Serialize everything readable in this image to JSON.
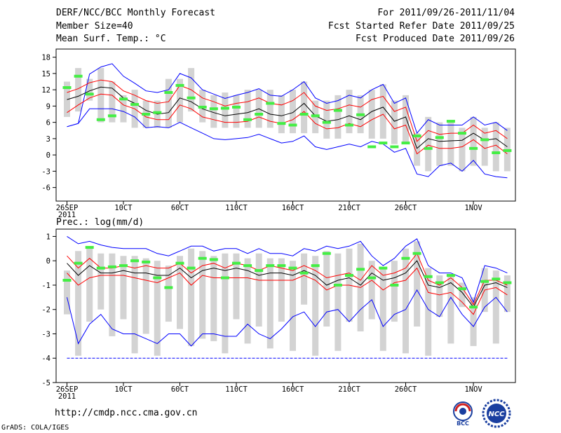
{
  "header": {
    "title": "DERF/NCC/BCC Monthly Forecast",
    "member_size": "Member Size=40",
    "variable": "Mean Surf. Temp.: °C",
    "period": "For 2011/09/26-2011/11/04",
    "fcst_started": "Fcst Started Refer Date 2011/09/25",
    "fcst_produced": "Fcst Produced Date 2011/09/26"
  },
  "footer": {
    "url": "http://cmdp.ncc.cma.gov.cn",
    "grads": "GrADS: COLA/IGES",
    "logo_bcc": "BCC",
    "logo_ncc": "NCC"
  },
  "colors": {
    "max_min": "#0000ff",
    "quartile": "#ff0000",
    "mean": "#000000",
    "bar": "#d3d3d3",
    "observed": "#44ee44"
  },
  "chart_data": [
    {
      "type": "line",
      "title": "Mean Surf. Temp.: °C",
      "x_tick_labels": [
        "26SEP",
        "10CT",
        "60CT",
        "110CT",
        "160CT",
        "210CT",
        "260CT",
        "1NOV"
      ],
      "x_tick_days": [
        0,
        5,
        10,
        15,
        20,
        25,
        30,
        36
      ],
      "x_sublabel": "2011",
      "y_ticks": [
        -6,
        -3,
        0,
        3,
        6,
        9,
        12,
        15,
        18
      ],
      "ylim": [
        -8.5,
        19.5
      ],
      "n_days": 40,
      "max": [
        5.2,
        5.8,
        14.9,
        16.2,
        16.8,
        14.5,
        13.2,
        11.8,
        11.5,
        12,
        15,
        14.2,
        12,
        11.2,
        10.4,
        11,
        11.5,
        12.2,
        11,
        10.8,
        12,
        13.5,
        10.5,
        9.5,
        10,
        11,
        10.5,
        12,
        13,
        9.5,
        10.5,
        4,
        6.5,
        5.5,
        5.5,
        5.5,
        7,
        5.5,
        6,
        4.5
      ],
      "q3": [
        11.5,
        12.2,
        13.3,
        13.8,
        13.5,
        11.8,
        11,
        10,
        9.5,
        9.8,
        12.8,
        12,
        10.5,
        9.8,
        9,
        9.5,
        9.8,
        10.5,
        9.5,
        9.2,
        10,
        11.5,
        9,
        8.2,
        8.5,
        9.2,
        8.8,
        10.2,
        10.8,
        8,
        8.8,
        2.5,
        4.5,
        3.8,
        4,
        4,
        5.5,
        4,
        4.5,
        3
      ],
      "mean": [
        10.2,
        10.8,
        11.8,
        12.5,
        12.3,
        10.5,
        9.5,
        8.2,
        7.5,
        7.8,
        10.5,
        9.8,
        8.5,
        7.8,
        7.2,
        7.5,
        7.8,
        8.5,
        7.5,
        7.2,
        7.8,
        9.5,
        7.2,
        6.2,
        6.5,
        7.2,
        6.5,
        8,
        8.8,
        6.2,
        7,
        1.2,
        3,
        2.5,
        2.6,
        2.7,
        4,
        2.7,
        3,
        1.5
      ],
      "q1": [
        7.8,
        9.2,
        10.5,
        11.2,
        11,
        9.2,
        8.5,
        7,
        6.5,
        6.5,
        9.2,
        8.5,
        7,
        6.5,
        6,
        6,
        6.2,
        7,
        6.2,
        5.8,
        6.5,
        8,
        5.8,
        4.8,
        5,
        5.8,
        5.2,
        6.5,
        7.5,
        4.8,
        5.5,
        0.2,
        1.8,
        1.2,
        1.2,
        1.5,
        2.8,
        1.2,
        1.8,
        0.2
      ],
      "min": [
        5.2,
        5.8,
        8.5,
        8.5,
        8.5,
        8,
        7,
        5,
        5.2,
        5,
        6,
        5,
        4,
        3,
        2.8,
        3,
        3.2,
        3.8,
        3,
        2.2,
        2.5,
        3.5,
        1.5,
        1,
        1.5,
        2,
        1.5,
        2.5,
        2,
        0.5,
        1.2,
        -3.5,
        -4,
        -2,
        -1.5,
        -3,
        -1,
        -3.5,
        -4,
        -4.2
      ],
      "bar_top": [
        13.5,
        16,
        14,
        16,
        13.5,
        11,
        12,
        10,
        10,
        14,
        14,
        16,
        12,
        11,
        11.5,
        11,
        12,
        12,
        12,
        11,
        12,
        13.5,
        10,
        10,
        11,
        12,
        11,
        12,
        13,
        10,
        11,
        4,
        7,
        6,
        6,
        5,
        7,
        5,
        6,
        5
      ],
      "bar_bottom": [
        7,
        8,
        10,
        6,
        6,
        6,
        5,
        5,
        5,
        5,
        6,
        8,
        6,
        5,
        5,
        5,
        5,
        5,
        5,
        4,
        4,
        4,
        4,
        3,
        3,
        4,
        4,
        3,
        3,
        2,
        2,
        -2,
        -3,
        -2,
        -2,
        -3,
        -2,
        -2,
        -3,
        -3
      ],
      "observed": [
        12.4,
        14.5,
        11.2,
        6.5,
        7.2,
        10.3,
        9.3,
        7.5,
        7.8,
        11.5,
        12.8,
        10.5,
        8.8,
        8.5,
        8.6,
        8.8,
        6.5,
        7.5,
        9.5,
        5.8,
        5.5,
        7.5,
        7.2,
        6,
        8.2,
        5.5,
        7.4,
        1.5,
        2.2,
        1.5,
        2.2,
        3.5,
        1.2,
        3.2,
        6.2,
        4,
        1.2,
        2.8,
        0.4,
        0.8
      ]
    },
    {
      "type": "line",
      "title": "Prec.: log(mm/d)",
      "x_tick_labels": [
        "26SEP",
        "10CT",
        "60CT",
        "110CT",
        "160CT",
        "210CT",
        "260CT",
        "1NOV"
      ],
      "x_tick_days": [
        0,
        5,
        10,
        15,
        20,
        25,
        30,
        36
      ],
      "x_sublabel": "2011",
      "y_ticks": [
        -5,
        -4,
        -3,
        -2,
        -1,
        0,
        1
      ],
      "ylim": [
        -5,
        1.3
      ],
      "n_days": 40,
      "baseline": -4,
      "max": [
        1,
        0.7,
        0.8,
        0.65,
        0.55,
        0.5,
        0.5,
        0.5,
        0.3,
        0.2,
        0.4,
        0.6,
        0.6,
        0.4,
        0.5,
        0.5,
        0.3,
        0.5,
        0.3,
        0.3,
        0.2,
        0.5,
        0.4,
        0.6,
        0.5,
        0.6,
        0.8,
        0.2,
        -0.2,
        0.1,
        0.6,
        0.9,
        -0.2,
        -0.5,
        -0.5,
        -0.7,
        -1.7,
        -0.2,
        -0.3,
        -0.5
      ],
      "q3": [
        0.2,
        -0.3,
        0.1,
        -0.3,
        -0.3,
        -0.2,
        -0.3,
        -0.2,
        -0.3,
        -0.3,
        -0.1,
        -0.5,
        -0.2,
        -0.1,
        -0.3,
        -0.1,
        -0.2,
        -0.4,
        -0.2,
        -0.3,
        -0.4,
        -0.2,
        -0.4,
        -0.7,
        -0.6,
        -0.5,
        -0.8,
        -0.2,
        -0.6,
        -0.5,
        -0.3,
        0.3,
        -0.8,
        -1,
        -0.7,
        -1.1,
        -1.8,
        -0.8,
        -0.8,
        -1
      ],
      "mean": [
        -0.1,
        -0.6,
        -0.2,
        -0.5,
        -0.5,
        -0.4,
        -0.5,
        -0.5,
        -0.6,
        -0.6,
        -0.3,
        -0.7,
        -0.4,
        -0.3,
        -0.4,
        -0.3,
        -0.4,
        -0.6,
        -0.5,
        -0.5,
        -0.6,
        -0.4,
        -0.6,
        -1,
        -0.8,
        -0.7,
        -1,
        -0.5,
        -0.8,
        -0.7,
        -0.5,
        0,
        -1,
        -1.1,
        -0.9,
        -1.3,
        -1.9,
        -1,
        -0.9,
        -1.1
      ],
      "q1": [
        -0.5,
        -1,
        -0.7,
        -0.6,
        -0.6,
        -0.6,
        -0.7,
        -0.8,
        -0.9,
        -0.7,
        -0.5,
        -1,
        -0.6,
        -0.7,
        -0.7,
        -0.7,
        -0.7,
        -0.8,
        -0.8,
        -0.8,
        -0.8,
        -0.6,
        -0.8,
        -1.2,
        -1,
        -1,
        -1.1,
        -0.8,
        -1.2,
        -0.9,
        -0.8,
        -0.3,
        -1.3,
        -1.4,
        -1.3,
        -1.7,
        -2.2,
        -1.2,
        -1.1,
        -1.4
      ],
      "min": [
        -1.5,
        -3.4,
        -2.6,
        -2.2,
        -2.8,
        -3,
        -3,
        -3.2,
        -3.4,
        -3,
        -3,
        -3.5,
        -3,
        -3,
        -3.1,
        -3.1,
        -2.6,
        -3,
        -3.2,
        -2.8,
        -2.3,
        -2.1,
        -2.7,
        -2.1,
        -2,
        -2.5,
        -2,
        -1.6,
        -2.7,
        -2.2,
        -2,
        -1.2,
        -2,
        -2.3,
        -1.5,
        -2.2,
        -2.7,
        -1.9,
        -1.5,
        -2.1
      ],
      "bar_top": [
        -0.4,
        0.4,
        0.5,
        0.3,
        0.3,
        0.2,
        0.2,
        0.1,
        0,
        -0.2,
        0.2,
        0.5,
        0.4,
        0.2,
        0.3,
        0.3,
        0.1,
        0.3,
        0.1,
        0.1,
        0,
        0.3,
        0.2,
        0.4,
        0.3,
        0.5,
        0.7,
        0,
        -0.3,
        0,
        0.5,
        0.8,
        -0.3,
        -0.6,
        -0.6,
        -0.9,
        -1.5,
        -0.3,
        -0.4,
        -0.6
      ],
      "bar_bottom": [
        -2.2,
        -3.9,
        -2.5,
        -2,
        -3.1,
        -2.4,
        -3.8,
        -3,
        -3.9,
        -2.5,
        -2.8,
        -3.5,
        -3.2,
        -3.3,
        -3.8,
        -2.4,
        -3.4,
        -2.7,
        -3.6,
        -2.5,
        -3.7,
        -1.8,
        -3.9,
        -2.7,
        -3.7,
        -2.5,
        -2.9,
        -2.4,
        -3.7,
        -2.5,
        -3.8,
        -2.7,
        -3.9,
        -2.3,
        -3.4,
        -1.9,
        -3.5,
        -2.1,
        -3.4,
        -2.1
      ],
      "observed": [
        -0.8,
        -0.1,
        0.55,
        -0.3,
        -0.25,
        -0.2,
        0,
        -0.05,
        -0.7,
        -1.1,
        -0.1,
        -0.3,
        0.1,
        0.05,
        -0.7,
        -0.1,
        -0.2,
        -0.4,
        -0.2,
        -0.2,
        -0.3,
        -0.5,
        -0.2,
        0.3,
        -1,
        -0.6,
        -0.35,
        -0.7,
        -0.3,
        -1,
        0.1,
        0.3,
        -0.65,
        -0.9,
        -0.6,
        -1.15,
        -1.9,
        -0.85,
        -0.75,
        -0.9
      ]
    }
  ]
}
